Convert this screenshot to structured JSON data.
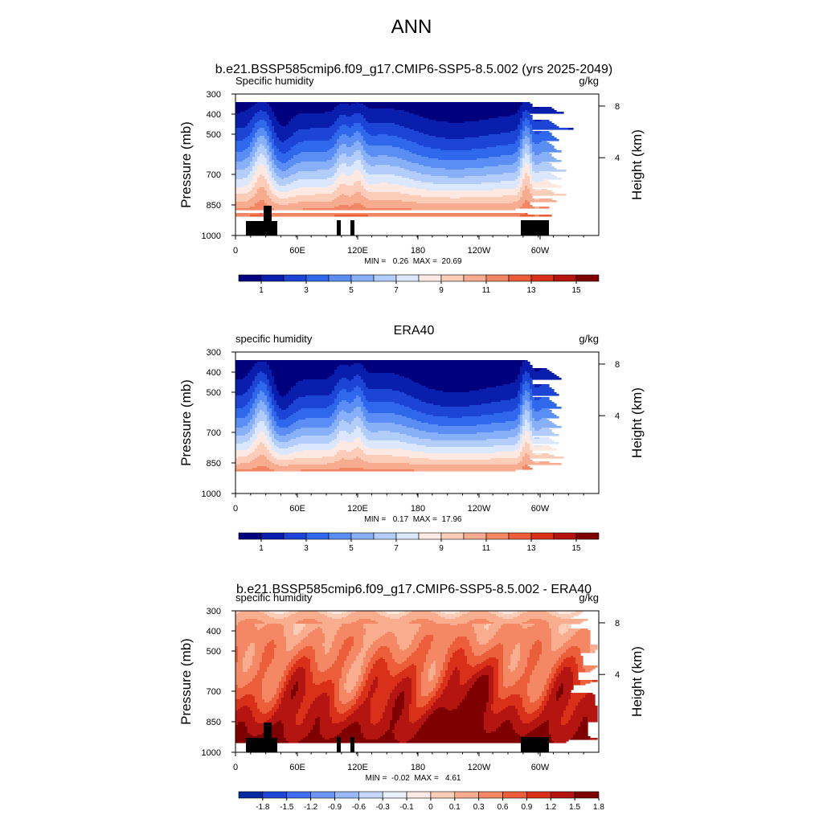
{
  "figure_title": "ANN",
  "colors": {
    "full_scale": [
      "#00007f",
      "#0a1eae",
      "#1c45d6",
      "#2f68ec",
      "#5a8ef5",
      "#88b0f8",
      "#b3cdfa",
      "#dae7fc",
      "#fde9e1",
      "#fbcdb9",
      "#f8ac8f",
      "#f38763",
      "#ec5e39",
      "#d9301a",
      "#b41510",
      "#7f0000"
    ],
    "diff_scale": [
      "#002aa0",
      "#1f47d6",
      "#3f6ef0",
      "#6b96f5",
      "#98b8f8",
      "#c4d7fb",
      "#e9f0fd",
      "#fde9e1",
      "#fbcdb6",
      "#f8ae8e",
      "#f48864",
      "#ec5e39",
      "#d9301a",
      "#b41510",
      "#7f0000"
    ]
  },
  "chart_data": [
    {
      "type": "heatmap",
      "title": "b.e21.BSSP585cmip6.f09_g17.CMIP6-SSP5-8.5.002 (yrs 2025-2049)",
      "left_label": "Specific humidity",
      "right_label": "g/kg",
      "ylabel": "Pressure (mb)",
      "ylabel_right": "Height (km)",
      "x_ticks": [
        "0",
        "60E",
        "120E",
        "180",
        "120W",
        "60W"
      ],
      "y_ticks": [
        "300",
        "400",
        "500",
        "700",
        "850",
        "1000"
      ],
      "y_ticks_right": [
        "8",
        "4"
      ],
      "minmax": "MIN =   0.26  MAX =  20.69",
      "colorbar_labels": [
        "1",
        "3",
        "5",
        "7",
        "9",
        "11",
        "13",
        "15"
      ],
      "field": "model",
      "masked": true
    },
    {
      "type": "heatmap",
      "title": "ERA40",
      "left_label": "specific humidity",
      "right_label": "g/kg",
      "ylabel": "Pressure (mb)",
      "ylabel_right": "Height (km)",
      "x_ticks": [
        "0",
        "60E",
        "120E",
        "180",
        "120W",
        "60W"
      ],
      "y_ticks": [
        "300",
        "400",
        "500",
        "700",
        "850",
        "1000"
      ],
      "y_ticks_right": [
        "8",
        "4"
      ],
      "minmax": "MIN =   0.17  MAX =  17.96",
      "colorbar_labels": [
        "1",
        "3",
        "5",
        "7",
        "9",
        "11",
        "13",
        "15"
      ],
      "field": "obs",
      "masked": false
    },
    {
      "type": "heatmap",
      "title": "b.e21.BSSP585cmip6.f09_g17.CMIP6-SSP5-8.5.002 - ERA40",
      "left_label": "specific humidity",
      "right_label": "g/kg",
      "ylabel": "Pressure (mb)",
      "ylabel_right": "Height (km)",
      "x_ticks": [
        "0",
        "60E",
        "120E",
        "180",
        "120W",
        "60W"
      ],
      "y_ticks": [
        "300",
        "400",
        "500",
        "700",
        "850",
        "1000"
      ],
      "y_ticks_right": [
        "8",
        "4"
      ],
      "minmax": "MIN =  -0.02  MAX =   4.61",
      "colorbar_labels": [
        "-1.8",
        "-1.5",
        "-1.2",
        "-0.9",
        "-0.6",
        "-0.3",
        "-0.1",
        "0",
        "0.1",
        "0.3",
        "0.6",
        "0.9",
        "1.2",
        "1.5",
        "1.8"
      ],
      "field": "diff",
      "masked": true
    }
  ]
}
